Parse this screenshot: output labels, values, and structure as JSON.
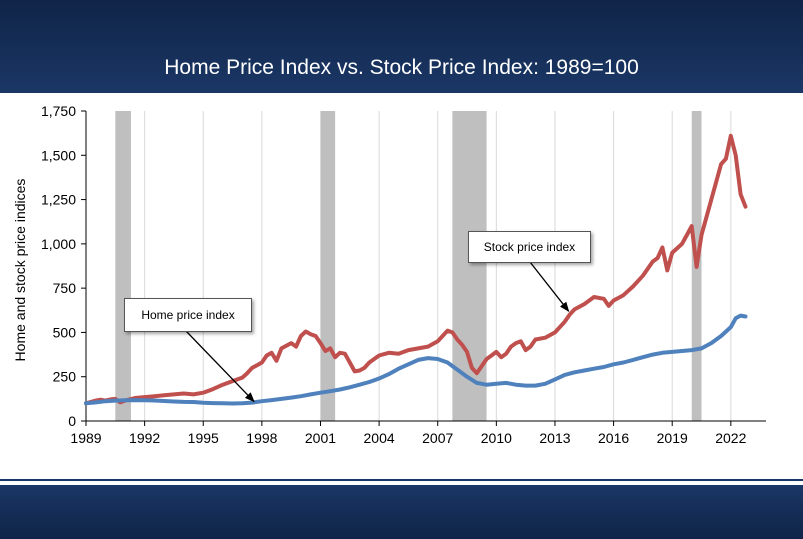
{
  "title": "Home Price Index vs. Stock Price Index: 1989=100",
  "chart_data": {
    "type": "line",
    "title": "Home Price Index vs. Stock Price Index: 1989=100",
    "ylabel": "Home and stock price indices",
    "xlabel": "",
    "xlim": [
      1989,
      2023.8
    ],
    "ylim": [
      0,
      1750
    ],
    "x_ticks": [
      "1989",
      "1992",
      "1995",
      "1998",
      "2001",
      "2004",
      "2007",
      "2010",
      "2013",
      "2016",
      "2019",
      "2022"
    ],
    "y_ticks": [
      "0",
      "250",
      "500",
      "750",
      "1,000",
      "1,250",
      "1,500",
      "1,750"
    ],
    "grid": "vertical",
    "shaded_periods": [
      [
        1990.5,
        1991.3
      ],
      [
        2001.0,
        2001.75
      ],
      [
        2007.75,
        2009.5
      ],
      [
        2020.0,
        2020.5
      ]
    ],
    "annotations": [
      {
        "text": "Home price index",
        "series": "Home price index",
        "points_to": [
          1997.6,
          110
        ]
      },
      {
        "text": "Stock price index",
        "series": "Stock price index",
        "points_to": [
          2013.7,
          620
        ]
      }
    ],
    "series": [
      {
        "name": "Stock price index",
        "color": "#c0504d",
        "points": [
          [
            1989.0,
            100
          ],
          [
            1989.25,
            108
          ],
          [
            1989.5,
            115
          ],
          [
            1989.75,
            120
          ],
          [
            1990.0,
            115
          ],
          [
            1990.25,
            122
          ],
          [
            1990.5,
            125
          ],
          [
            1990.75,
            105
          ],
          [
            1991.0,
            115
          ],
          [
            1991.5,
            130
          ],
          [
            1992.0,
            135
          ],
          [
            1992.5,
            140
          ],
          [
            1993.0,
            145
          ],
          [
            1993.5,
            150
          ],
          [
            1994.0,
            155
          ],
          [
            1994.5,
            150
          ],
          [
            1995.0,
            160
          ],
          [
            1995.5,
            180
          ],
          [
            1996.0,
            205
          ],
          [
            1996.5,
            225
          ],
          [
            1997.0,
            245
          ],
          [
            1997.25,
            270
          ],
          [
            1997.5,
            300
          ],
          [
            1997.75,
            315
          ],
          [
            1998.0,
            330
          ],
          [
            1998.25,
            370
          ],
          [
            1998.5,
            385
          ],
          [
            1998.75,
            340
          ],
          [
            1999.0,
            410
          ],
          [
            1999.5,
            440
          ],
          [
            1999.75,
            420
          ],
          [
            2000.0,
            480
          ],
          [
            2000.25,
            505
          ],
          [
            2000.5,
            490
          ],
          [
            2000.75,
            480
          ],
          [
            2001.0,
            440
          ],
          [
            2001.25,
            395
          ],
          [
            2001.5,
            410
          ],
          [
            2001.75,
            360
          ],
          [
            2002.0,
            385
          ],
          [
            2002.25,
            380
          ],
          [
            2002.5,
            330
          ],
          [
            2002.75,
            280
          ],
          [
            2003.0,
            285
          ],
          [
            2003.25,
            300
          ],
          [
            2003.5,
            330
          ],
          [
            2003.75,
            350
          ],
          [
            2004.0,
            370
          ],
          [
            2004.5,
            385
          ],
          [
            2005.0,
            380
          ],
          [
            2005.5,
            400
          ],
          [
            2006.0,
            410
          ],
          [
            2006.5,
            420
          ],
          [
            2007.0,
            450
          ],
          [
            2007.25,
            480
          ],
          [
            2007.5,
            510
          ],
          [
            2007.75,
            500
          ],
          [
            2008.0,
            460
          ],
          [
            2008.25,
            430
          ],
          [
            2008.5,
            390
          ],
          [
            2008.75,
            300
          ],
          [
            2009.0,
            270
          ],
          [
            2009.25,
            310
          ],
          [
            2009.5,
            350
          ],
          [
            2009.75,
            370
          ],
          [
            2010.0,
            390
          ],
          [
            2010.25,
            360
          ],
          [
            2010.5,
            380
          ],
          [
            2010.75,
            420
          ],
          [
            2011.0,
            440
          ],
          [
            2011.25,
            450
          ],
          [
            2011.5,
            400
          ],
          [
            2011.75,
            420
          ],
          [
            2012.0,
            460
          ],
          [
            2012.5,
            470
          ],
          [
            2013.0,
            500
          ],
          [
            2013.5,
            560
          ],
          [
            2013.75,
            600
          ],
          [
            2014.0,
            630
          ],
          [
            2014.5,
            660
          ],
          [
            2015.0,
            700
          ],
          [
            2015.5,
            690
          ],
          [
            2015.75,
            650
          ],
          [
            2016.0,
            680
          ],
          [
            2016.5,
            710
          ],
          [
            2017.0,
            760
          ],
          [
            2017.5,
            820
          ],
          [
            2018.0,
            900
          ],
          [
            2018.25,
            920
          ],
          [
            2018.5,
            980
          ],
          [
            2018.75,
            850
          ],
          [
            2019.0,
            950
          ],
          [
            2019.5,
            1000
          ],
          [
            2019.75,
            1050
          ],
          [
            2020.0,
            1100
          ],
          [
            2020.25,
            870
          ],
          [
            2020.5,
            1050
          ],
          [
            2020.75,
            1150
          ],
          [
            2021.0,
            1250
          ],
          [
            2021.25,
            1350
          ],
          [
            2021.5,
            1450
          ],
          [
            2021.75,
            1480
          ],
          [
            2022.0,
            1610
          ],
          [
            2022.25,
            1500
          ],
          [
            2022.5,
            1280
          ],
          [
            2022.75,
            1210
          ]
        ]
      },
      {
        "name": "Home price index",
        "color": "#4f81bd",
        "points": [
          [
            1989.0,
            100
          ],
          [
            1989.5,
            105
          ],
          [
            1990.0,
            112
          ],
          [
            1990.5,
            115
          ],
          [
            1991.0,
            117
          ],
          [
            1991.5,
            118
          ],
          [
            1992.0,
            117
          ],
          [
            1992.5,
            116
          ],
          [
            1993.0,
            113
          ],
          [
            1993.5,
            110
          ],
          [
            1994.0,
            108
          ],
          [
            1994.5,
            107
          ],
          [
            1995.0,
            103
          ],
          [
            1995.5,
            101
          ],
          [
            1996.0,
            100
          ],
          [
            1996.5,
            99
          ],
          [
            1997.0,
            100
          ],
          [
            1997.5,
            104
          ],
          [
            1998.0,
            112
          ],
          [
            1998.5,
            118
          ],
          [
            1999.0,
            125
          ],
          [
            1999.5,
            132
          ],
          [
            2000.0,
            140
          ],
          [
            2000.5,
            150
          ],
          [
            2001.0,
            160
          ],
          [
            2001.5,
            168
          ],
          [
            2002.0,
            178
          ],
          [
            2002.5,
            190
          ],
          [
            2003.0,
            205
          ],
          [
            2003.5,
            220
          ],
          [
            2004.0,
            240
          ],
          [
            2004.5,
            265
          ],
          [
            2005.0,
            295
          ],
          [
            2005.5,
            320
          ],
          [
            2006.0,
            345
          ],
          [
            2006.5,
            355
          ],
          [
            2007.0,
            350
          ],
          [
            2007.5,
            330
          ],
          [
            2008.0,
            290
          ],
          [
            2008.5,
            250
          ],
          [
            2009.0,
            215
          ],
          [
            2009.5,
            205
          ],
          [
            2010.0,
            210
          ],
          [
            2010.5,
            215
          ],
          [
            2011.0,
            205
          ],
          [
            2011.5,
            200
          ],
          [
            2012.0,
            200
          ],
          [
            2012.5,
            210
          ],
          [
            2013.0,
            235
          ],
          [
            2013.5,
            260
          ],
          [
            2014.0,
            275
          ],
          [
            2014.5,
            285
          ],
          [
            2015.0,
            295
          ],
          [
            2015.5,
            305
          ],
          [
            2016.0,
            320
          ],
          [
            2016.5,
            330
          ],
          [
            2017.0,
            345
          ],
          [
            2017.5,
            360
          ],
          [
            2018.0,
            375
          ],
          [
            2018.5,
            385
          ],
          [
            2019.0,
            390
          ],
          [
            2019.5,
            395
          ],
          [
            2020.0,
            400
          ],
          [
            2020.5,
            410
          ],
          [
            2021.0,
            440
          ],
          [
            2021.5,
            480
          ],
          [
            2022.0,
            530
          ],
          [
            2022.25,
            580
          ],
          [
            2022.5,
            595
          ],
          [
            2022.75,
            590
          ]
        ]
      }
    ]
  }
}
